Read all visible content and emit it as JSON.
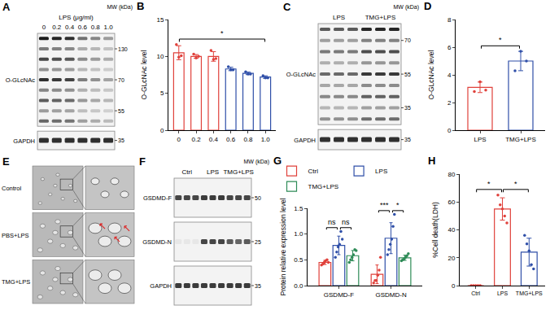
{
  "chart_data": [
    {
      "panel": "B",
      "type": "bar",
      "categories": [
        "0",
        "0.2",
        "0.4",
        "0.6",
        "0.8",
        "1.0"
      ],
      "values": [
        10.5,
        10.0,
        10.0,
        8.3,
        7.7,
        7.2
      ],
      "errors": [
        0.95,
        0.25,
        0.65,
        0.23,
        0.17,
        0.17
      ],
      "points": [
        [
          11.6,
          9.9,
          10.1
        ],
        [
          10.3,
          9.8,
          10.0
        ],
        [
          10.8,
          9.6,
          9.7
        ],
        [
          8.6,
          8.2,
          8.2
        ],
        [
          7.9,
          7.6,
          7.6
        ],
        [
          7.4,
          7.1,
          7.1
        ]
      ],
      "colors": [
        "#e0413b",
        "#e0413b",
        "#e0413b",
        "#2f4fa8",
        "#2f4fa8",
        "#2f4fa8"
      ],
      "y_label": "O-GLcNAc level",
      "ylim": [
        0,
        15
      ],
      "yticks": [
        0,
        5,
        10,
        15
      ],
      "grid": false,
      "significance": [
        {
          "from": "0",
          "to": "1.0",
          "label": "*"
        }
      ]
    },
    {
      "panel": "D",
      "type": "bar",
      "categories": [
        "LPS",
        "TMG+LPS"
      ],
      "values": [
        3.1,
        5.0
      ],
      "errors": [
        0.38,
        0.7
      ],
      "points": [
        [
          2.8,
          3.5,
          2.9
        ],
        [
          4.3,
          5.7,
          5.0
        ]
      ],
      "colors": [
        "#e0413b",
        "#2f4fa8"
      ],
      "y_label": "O-GLcNAc level",
      "ylim": [
        0,
        8
      ],
      "yticks": [
        0,
        2,
        4,
        6,
        8
      ],
      "grid": false,
      "significance": [
        {
          "from": "LPS",
          "to": "TMG+LPS",
          "label": "*"
        }
      ]
    },
    {
      "panel": "G",
      "type": "bar",
      "categories": [
        "GSDMD-F",
        "GSDMD-N"
      ],
      "series": [
        {
          "name": "Ctrl",
          "color": "#e0413b",
          "values": [
            0.45,
            0.22
          ],
          "errors": [
            0.04,
            0.18
          ],
          "points": [
            [
              0.4,
              0.42,
              0.45,
              0.48,
              0.5,
              0.45
            ],
            [
              0.05,
              0.1,
              0.1,
              0.2,
              0.3,
              0.55
            ]
          ]
        },
        {
          "name": "LPS",
          "color": "#2f4fa8",
          "values": [
            0.78,
            0.92
          ],
          "errors": [
            0.18,
            0.3
          ],
          "points": [
            [
              0.55,
              0.65,
              0.75,
              0.8,
              1.05,
              0.9
            ],
            [
              0.6,
              0.7,
              0.8,
              0.9,
              1.15,
              1.38
            ]
          ]
        },
        {
          "name": "TMG+LPS",
          "color": "#2e8b57",
          "values": [
            0.58,
            0.54
          ],
          "errors": [
            0.1,
            0.05
          ],
          "points": [
            [
              0.45,
              0.5,
              0.55,
              0.6,
              0.7,
              0.68
            ],
            [
              0.48,
              0.5,
              0.52,
              0.55,
              0.58,
              0.62
            ]
          ]
        }
      ],
      "y_label": "Protein relative expression level",
      "ylim": [
        0,
        1.5
      ],
      "yticks": [
        {
          "value": 0,
          "label": "0.0"
        },
        {
          "value": 0.5,
          "label": "0.5"
        },
        {
          "value": 1,
          "label": "1.0"
        },
        {
          "value": 1.5,
          "label": "1.5"
        }
      ],
      "grid": false,
      "legend": "top",
      "significance": [
        {
          "category": "GSDMD-F",
          "from": "Ctrl",
          "to": "LPS",
          "label": "ns"
        },
        {
          "category": "GSDMD-F",
          "from": "LPS",
          "to": "TMG+LPS",
          "label": "ns"
        },
        {
          "category": "GSDMD-N",
          "from": "Ctrl",
          "to": "LPS",
          "label": "***"
        },
        {
          "category": "GSDMD-N",
          "from": "LPS",
          "to": "TMG+LPS",
          "label": "*"
        }
      ]
    },
    {
      "panel": "H",
      "type": "bar",
      "categories": [
        "Ctrl",
        "LPS",
        "TMG+LPS"
      ],
      "values": [
        0,
        55,
        24
      ],
      "errors": [
        0,
        8,
        10
      ],
      "points": [
        [
          0,
          0,
          0,
          0,
          0
        ],
        [
          65,
          58,
          55,
          50,
          45
        ],
        [
          36,
          30,
          25,
          15,
          12
        ]
      ],
      "colors": [
        "#e0413b",
        "#e0413b",
        "#2f4fa8"
      ],
      "y_label": "%Cell death(LDH)",
      "ylim": [
        0,
        80
      ],
      "yticks": [
        0,
        20,
        40,
        60,
        80
      ],
      "grid": false,
      "significance": [
        {
          "from": "Ctrl",
          "to": "LPS",
          "label": "*"
        },
        {
          "from": "LPS",
          "to": "TMG+LPS",
          "label": "*"
        }
      ]
    }
  ],
  "blots": [
    {
      "panel": "A",
      "header": "LPS (μg/ml)",
      "mw_title": "MW (kDa)",
      "lane_groups": [
        {
          "label": "0",
          "lanes": 1
        },
        {
          "label": "0.2",
          "lanes": 1
        },
        {
          "label": "0.4",
          "lanes": 1
        },
        {
          "label": "0.6",
          "lanes": 1
        },
        {
          "label": "0.8",
          "lanes": 1
        },
        {
          "label": "1.0",
          "lanes": 1
        }
      ],
      "rows": [
        {
          "label": "O-GLcNAc",
          "mw": [
            "130",
            "70",
            "55"
          ],
          "bands": [
            1.0,
            0.95,
            0.9,
            0.6,
            0.5,
            0.4
          ]
        },
        {
          "label": "GAPDH",
          "mw": [
            "35"
          ],
          "bands": [
            0.9,
            0.9,
            0.9,
            0.9,
            0.9,
            0.9
          ]
        }
      ]
    },
    {
      "panel": "C",
      "mw_title": "MW (kDa)",
      "lane_groups": [
        {
          "label": "LPS",
          "lanes": 3
        },
        {
          "label": "TMG+LPS",
          "lanes": 3
        }
      ],
      "rows": [
        {
          "label": "O-GLcNAc",
          "mw": [
            "70",
            "55",
            "35"
          ],
          "bands": [
            0.7,
            0.7,
            0.7,
            0.95,
            0.95,
            0.95
          ]
        },
        {
          "label": "GAPDH",
          "mw": [
            "35"
          ],
          "bands": [
            0.9,
            0.9,
            0.9,
            0.9,
            0.9,
            0.9
          ]
        }
      ]
    },
    {
      "panel": "F",
      "mw_title": "MW (kDa)",
      "lane_groups": [
        {
          "label": "Ctrl",
          "lanes": 3
        },
        {
          "label": "LPS",
          "lanes": 3
        },
        {
          "label": "TMG+LPS",
          "lanes": 3
        }
      ],
      "rows": [
        {
          "label": "GSDMD-F",
          "mw": [
            "50"
          ],
          "bands": [
            0.8,
            0.8,
            0.8,
            0.85,
            0.85,
            0.85,
            0.8,
            0.8,
            0.8
          ]
        },
        {
          "label": "GSDMD-N",
          "mw": [
            "25"
          ],
          "bands": [
            0.05,
            0.05,
            0.05,
            0.8,
            0.8,
            0.8,
            0.7,
            0.65,
            0.7
          ]
        },
        {
          "label": "GAPDH",
          "mw": [
            "35"
          ],
          "bands": [
            0.85,
            0.85,
            0.85,
            0.85,
            0.85,
            0.85,
            0.85,
            0.85,
            0.85
          ]
        }
      ]
    }
  ],
  "micrographs": {
    "panel": "E",
    "rows": [
      "Control",
      "PBS+LPS",
      "TMG+LPS"
    ]
  }
}
